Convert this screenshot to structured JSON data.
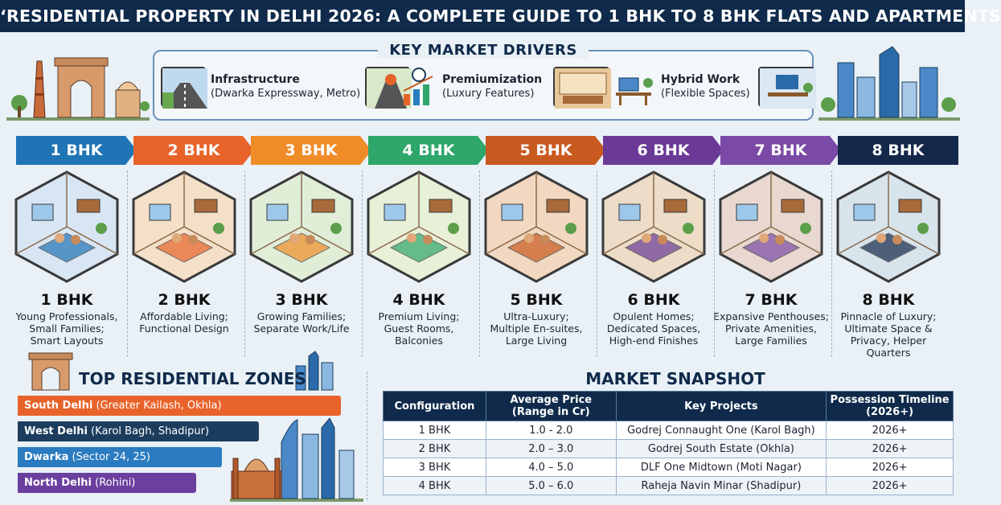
{
  "title": "‘RESIDENTIAL PROPERTY IN DELHI 2026: A COMPLETE GUIDE TO 1 BHK TO 8 BHK FLATS AND APARTMENTS",
  "drivers": {
    "title": "KEY MARKET DRIVERS",
    "items": [
      {
        "name": "Infrastructure",
        "detail": "(Dwarka Expressway, Metro)"
      },
      {
        "name": "Premiumization",
        "detail": "(Luxury Features)"
      },
      {
        "name": "Hybrid Work",
        "detail": "(Flexible Spaces)"
      }
    ]
  },
  "configs": [
    {
      "label": "1 BHK",
      "color": "#1f74b5",
      "desc": [
        "Young Professionals,",
        "Small Families;",
        "Smart Layouts"
      ]
    },
    {
      "label": "2 BHK",
      "color": "#e8632a",
      "desc": [
        "Affordable Living;",
        "Functional Design"
      ]
    },
    {
      "label": "3 BHK",
      "color": "#f08c28",
      "desc": [
        "Growing Families;",
        "Separate Work/Life"
      ]
    },
    {
      "label": "4 BHK",
      "color": "#2fa66a",
      "desc": [
        "Premium Living;",
        "Guest Rooms,",
        "Balconies"
      ]
    },
    {
      "label": "5 BHK",
      "color": "#c95a1f",
      "desc": [
        "Ultra-Luxury;",
        "Multiple En-suites,",
        "Large Living"
      ]
    },
    {
      "label": "6 BHK",
      "color": "#6a3a96",
      "desc": [
        "Opulent Homes;",
        "Dedicated Spaces,",
        "High-end Finishes"
      ]
    },
    {
      "label": "7 BHK",
      "color": "#7b4aa6",
      "desc": [
        "Expansive Penthouses;",
        "Private Amenities,",
        "Large Families"
      ]
    },
    {
      "label": "8 BHK",
      "color": "#14284a",
      "desc": [
        "Pinnacle of Luxury;",
        "Ultimate Space &",
        "Privacy, Helper",
        "Quarters"
      ]
    }
  ],
  "zones": {
    "title": "TOP RESIDENTIAL ZONES",
    "items": [
      {
        "name": "South Delhi",
        "detail": "(Greater Kailash, Okhla)",
        "color": "#e8632a"
      },
      {
        "name": "West Delhi",
        "detail": "(Karol Bagh, Shadipur)",
        "color": "#1c3d5e"
      },
      {
        "name": "Dwarka",
        "detail": "(Sector 24, 25)",
        "color": "#2a7bbf"
      },
      {
        "name": "North Delhi",
        "detail": "(Rohini)",
        "color": "#6b3f9e"
      }
    ]
  },
  "snapshot": {
    "title": "MARKET SNAPSHOT",
    "headers": [
      "Configuration",
      "Average Price\n(Range in Cr)",
      "Key Projects",
      "Possession Timeline\n(2026+)"
    ],
    "rows": [
      [
        "1 BHK",
        "1.0 - 2.0",
        "Godrej Connaught One (Karol Bagh)",
        "2026+"
      ],
      [
        "2 BHK",
        "2.0 – 3.0",
        "Godrej South Estate (Okhla)",
        "2026+"
      ],
      [
        "3 BHK",
        "4.0 – 5.0",
        "DLF One Midtown (Moti Nagar)",
        "2026+"
      ],
      [
        "4 BHK",
        "5.0 – 6.0",
        "Raheja Navin Minar (Shadipur)",
        "2026+"
      ]
    ]
  }
}
